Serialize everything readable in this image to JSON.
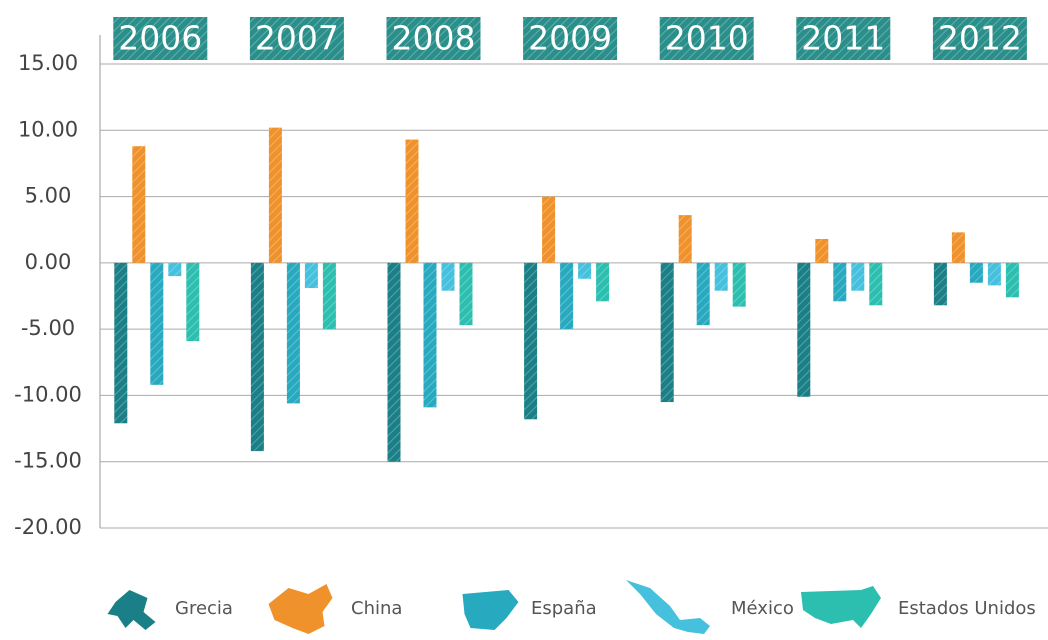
{
  "chart_data": {
    "type": "bar",
    "categories": [
      "2006",
      "2007",
      "2008",
      "2009",
      "2010",
      "2011",
      "2012"
    ],
    "series": [
      {
        "name": "Grecia",
        "color": "#1a7f86",
        "values": [
          -12.1,
          -14.2,
          -15.0,
          -11.8,
          -10.5,
          -10.1,
          -3.2
        ]
      },
      {
        "name": "China",
        "color": "#f0922b",
        "values": [
          8.8,
          10.2,
          9.3,
          5.0,
          3.6,
          1.8,
          2.3
        ]
      },
      {
        "name": "España",
        "color": "#27a9bf",
        "values": [
          -9.2,
          -10.6,
          -10.9,
          -5.0,
          -4.7,
          -2.9,
          -1.5
        ]
      },
      {
        "name": "México",
        "color": "#45c0dd",
        "values": [
          -1.0,
          -1.9,
          -2.1,
          -1.2,
          -2.1,
          -2.1,
          -1.7
        ]
      },
      {
        "name": "Estados Unidos",
        "color": "#2cbfb0",
        "values": [
          -5.9,
          -5.0,
          -4.7,
          -2.9,
          -3.3,
          -3.2,
          -2.6
        ]
      }
    ],
    "ylim": [
      -20,
      15
    ],
    "yticks": [
      {
        "value": -20,
        "label": "-20.00"
      },
      {
        "value": -15,
        "label": "-15.00"
      },
      {
        "value": -10,
        "label": "-10.00"
      },
      {
        "value": -5,
        "label": "-5.00"
      },
      {
        "value": 0,
        "label": "0.00"
      },
      {
        "value": 5,
        "label": "5.00"
      },
      {
        "value": 10,
        "label": "10.00"
      },
      {
        "value": 15,
        "label": "15.00"
      }
    ],
    "grid": true
  }
}
